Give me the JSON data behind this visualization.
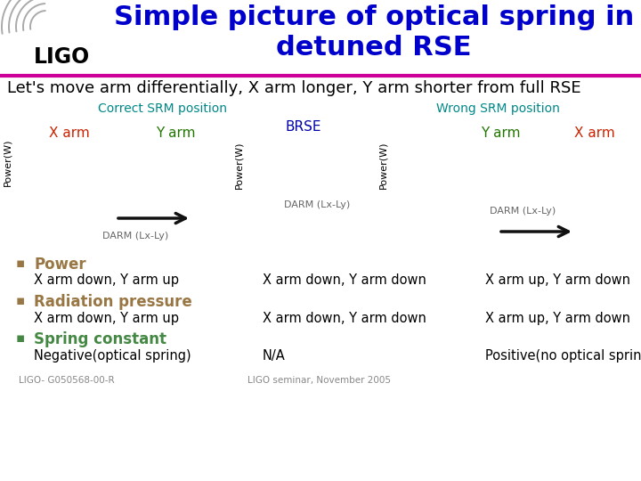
{
  "title": "Simple picture of optical spring in\ndetuned RSE",
  "title_color": "#0000CC",
  "title_fontsize": 22,
  "subtitle": "Let's move arm differentially, X arm longer, Y arm shorter from full RSE",
  "subtitle_fontsize": 13,
  "bg_color": "#FFFFFF",
  "header_line_color": "#CC0099",
  "correct_label": "Correct SRM position",
  "wrong_label": "Wrong SRM position",
  "correct_color": "#008888",
  "wrong_color": "#008888",
  "x_arm_color": "#CC2200",
  "y_arm_color": "#227700",
  "brse_color": "#0000AA",
  "power_label_color": "#997744",
  "radiation_label_color": "#997744",
  "spring_label_color": "#448844",
  "arrow_color": "#111111",
  "darm_text_color": "#666666",
  "footer_color": "#888888",
  "ligo_arc_color": "#AAAAAA"
}
